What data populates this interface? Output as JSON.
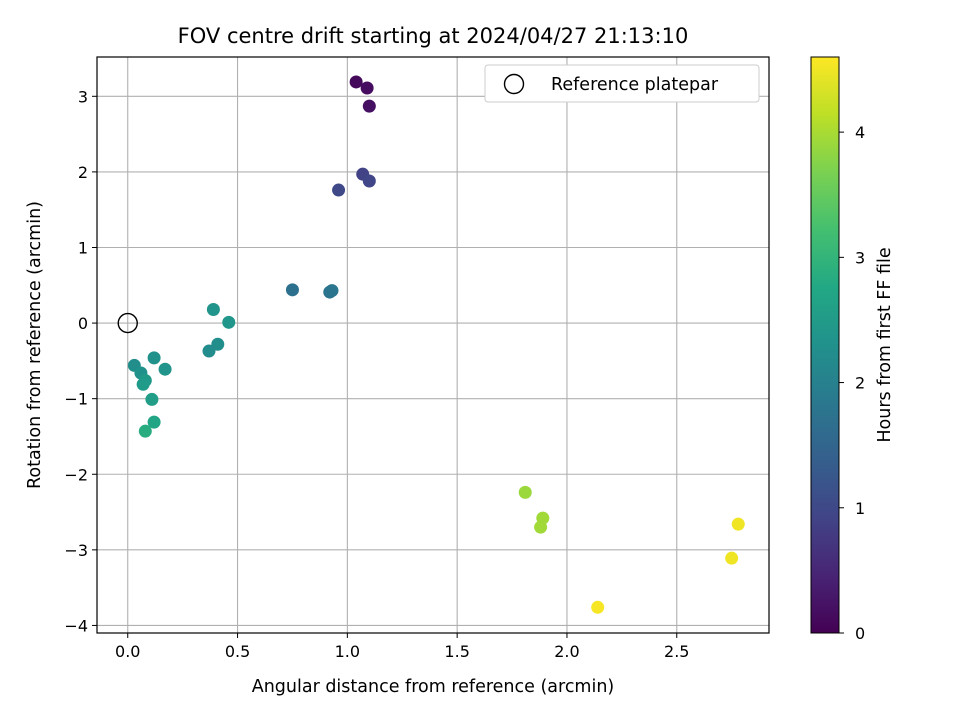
{
  "chart_data": {
    "type": "scatter",
    "title": "FOV centre drift starting at 2024/04/27 21:13:10",
    "xlabel": "Angular distance from reference (arcmin)",
    "ylabel": "Rotation from reference (arcmin)",
    "xlim": [
      -0.14,
      2.92
    ],
    "ylim": [
      -4.1,
      3.52
    ],
    "xticks": [
      0.0,
      0.5,
      1.0,
      1.5,
      2.0,
      2.5
    ],
    "xtick_labels": [
      "0.0",
      "0.5",
      "1.0",
      "1.5",
      "2.0",
      "2.5"
    ],
    "yticks": [
      -4,
      -3,
      -2,
      -1,
      0,
      1,
      2,
      3
    ],
    "ytick_labels": [
      "−4",
      "−3",
      "−2",
      "−1",
      "0",
      "1",
      "2",
      "3"
    ],
    "grid": true,
    "legend": {
      "position": "top-right",
      "entries": [
        "Reference platepar"
      ]
    },
    "reference_point": {
      "x": 0.0,
      "y": 0.0
    },
    "colorbar": {
      "label": "Hours from first FF file",
      "range": [
        0,
        4.6
      ],
      "ticks": [
        0,
        1,
        2,
        3,
        4
      ],
      "tick_labels": [
        "0",
        "1",
        "2",
        "3",
        "4"
      ],
      "colormap": "viridis"
    },
    "points": [
      {
        "x": 1.04,
        "y": 3.19,
        "c": 0.1
      },
      {
        "x": 1.09,
        "y": 3.11,
        "c": 0.15
      },
      {
        "x": 1.1,
        "y": 2.87,
        "c": 0.2
      },
      {
        "x": 1.07,
        "y": 1.97,
        "c": 0.9
      },
      {
        "x": 1.1,
        "y": 1.88,
        "c": 0.95
      },
      {
        "x": 0.96,
        "y": 1.76,
        "c": 1.0
      },
      {
        "x": 0.75,
        "y": 0.44,
        "c": 1.7
      },
      {
        "x": 0.92,
        "y": 0.41,
        "c": 1.75
      },
      {
        "x": 0.93,
        "y": 0.43,
        "c": 1.78
      },
      {
        "x": 0.39,
        "y": 0.18,
        "c": 2.35
      },
      {
        "x": 0.46,
        "y": 0.01,
        "c": 2.4
      },
      {
        "x": 0.41,
        "y": -0.28,
        "c": 2.25
      },
      {
        "x": 0.37,
        "y": -0.37,
        "c": 2.2
      },
      {
        "x": 0.12,
        "y": -0.46,
        "c": 2.3
      },
      {
        "x": 0.17,
        "y": -0.61,
        "c": 2.35
      },
      {
        "x": 0.03,
        "y": -0.56,
        "c": 2.25
      },
      {
        "x": 0.06,
        "y": -0.66,
        "c": 2.3
      },
      {
        "x": 0.08,
        "y": -0.76,
        "c": 2.45
      },
      {
        "x": 0.07,
        "y": -0.81,
        "c": 2.5
      },
      {
        "x": 0.11,
        "y": -1.01,
        "c": 2.55
      },
      {
        "x": 0.12,
        "y": -1.31,
        "c": 2.7
      },
      {
        "x": 0.08,
        "y": -1.43,
        "c": 2.85
      },
      {
        "x": 1.81,
        "y": -2.24,
        "c": 3.9
      },
      {
        "x": 1.89,
        "y": -2.58,
        "c": 3.95
      },
      {
        "x": 1.88,
        "y": -2.7,
        "c": 3.95
      },
      {
        "x": 2.14,
        "y": -3.76,
        "c": 4.55
      },
      {
        "x": 2.75,
        "y": -3.11,
        "c": 4.5
      },
      {
        "x": 2.78,
        "y": -2.66,
        "c": 4.5
      }
    ]
  }
}
